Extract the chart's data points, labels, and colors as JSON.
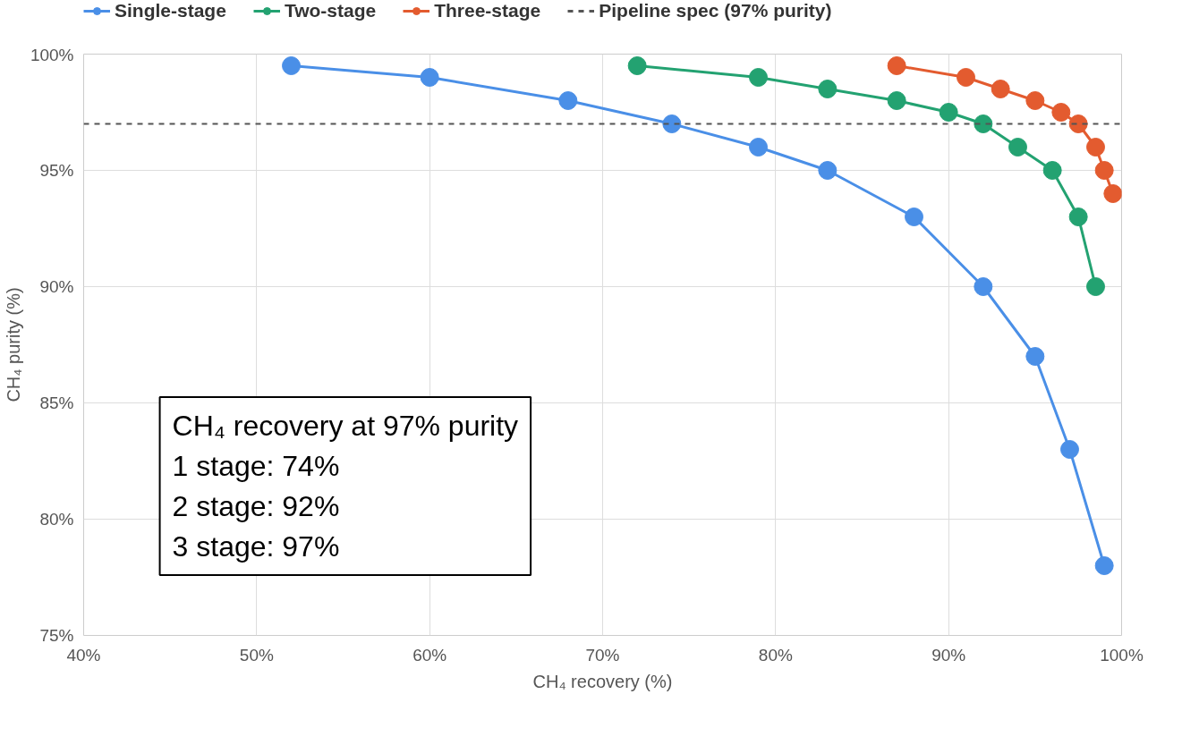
{
  "chart_data": {
    "type": "line",
    "xlabel": "CH₄ recovery (%)",
    "ylabel": "CH₄ purity (%)",
    "xlim": [
      40,
      100
    ],
    "ylim": [
      75,
      100
    ],
    "xticks": [
      {
        "value": 40,
        "label": "40%"
      },
      {
        "value": 50,
        "label": "50%"
      },
      {
        "value": 60,
        "label": "60%"
      },
      {
        "value": 70,
        "label": "70%"
      },
      {
        "value": 80,
        "label": "80%"
      },
      {
        "value": 90,
        "label": "90%"
      },
      {
        "value": 100,
        "label": "100%"
      }
    ],
    "yticks": [
      {
        "value": 75,
        "label": "75%"
      },
      {
        "value": 80,
        "label": "80%"
      },
      {
        "value": 85,
        "label": "85%"
      },
      {
        "value": 90,
        "label": "90%"
      },
      {
        "value": 95,
        "label": "95%"
      },
      {
        "value": 100,
        "label": "100%"
      }
    ],
    "grid": true,
    "legend": "top",
    "marker": "circle",
    "line_style": "solid",
    "series": [
      {
        "name": "Single-stage",
        "color": "#4a8fe7",
        "x": [
          52,
          60,
          68,
          74,
          79,
          83,
          88,
          92,
          95,
          97,
          99
        ],
        "values": [
          99.5,
          99,
          98,
          97,
          96,
          95,
          93,
          90,
          87,
          83,
          78
        ]
      },
      {
        "name": "Two-stage",
        "color": "#23a271",
        "x": [
          72,
          79,
          83,
          87,
          90,
          92,
          94,
          96,
          97.5,
          98.5
        ],
        "values": [
          99.5,
          99,
          98.5,
          98,
          97.5,
          97,
          96,
          95,
          93,
          90
        ]
      },
      {
        "name": "Three-stage",
        "color": "#e35b2f",
        "x": [
          87,
          91,
          93,
          95,
          96.5,
          97.5,
          98.5,
          99,
          99.5
        ],
        "values": [
          99.5,
          99,
          98.5,
          98,
          97.5,
          97,
          96,
          95,
          94
        ]
      }
    ],
    "ref_lines": [
      {
        "axis": "y",
        "value": 97,
        "label": "Pipeline spec (97% purity)",
        "color": "#555555",
        "line_style": "dashed"
      }
    ],
    "annotations": [
      "CH₄ recovery at 97% purity",
      "1 stage: 74%",
      "2 stage: 92%",
      "3 stage: 97%"
    ]
  }
}
